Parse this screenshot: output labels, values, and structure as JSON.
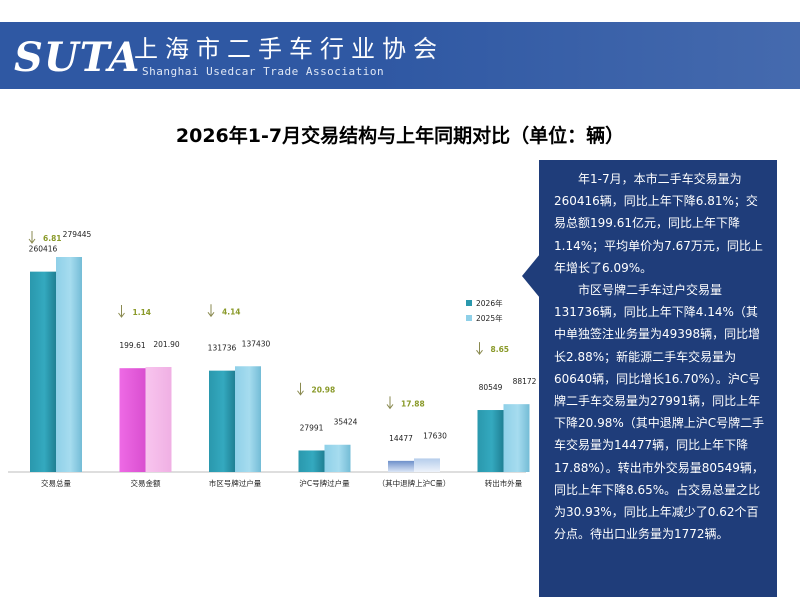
{
  "header": {
    "logo_text": "SUTA",
    "org_name_cn": "上海市二手车行业协会",
    "org_name_en": "Shanghai Usedcar Trade Association"
  },
  "title": "2026年1-7月交易结构与上年同期对比（单位：辆）",
  "chart_data": {
    "type": "bar",
    "categories": [
      "交易总量",
      "交易金额",
      "市区号牌过户量",
      "沪C号牌过户量",
      "（其中退牌上沪C量）",
      "转出市外量"
    ],
    "series": [
      {
        "name": "2026年",
        "values": [
          260416,
          199.61,
          131736,
          27991,
          14477,
          80549
        ],
        "labels": [
          "260416",
          "199.61",
          "131736",
          "27991",
          "14477",
          "80549"
        ]
      },
      {
        "name": "2025年",
        "values": [
          279445,
          201.9,
          137430,
          35424,
          17630,
          88172
        ],
        "labels": [
          "279445",
          "201.90",
          "137430",
          "35424",
          "17630",
          "88172"
        ]
      }
    ],
    "change_labels": [
      "6.81",
      "1.14",
      "4.14",
      "20.98",
      "17.88",
      "8.65"
    ],
    "change_direction": "down",
    "colors": {
      "2026": "#2a98ad",
      "2025": "#8fd0e8",
      "amount_2026": "#ee6ae5",
      "amount_2025": "#f8c5ee",
      "change_label": "#8a9a2a",
      "arrow": "#8a8a50"
    },
    "legend_position": "right",
    "grid": false,
    "note": "交易金额 in 亿元, drawn on its own scale"
  },
  "note_paragraphs": [
    "年1-7月，本市二手车交易量为260416辆，同比上年下降6.81%；交易总额199.61亿元，同比上年下降1.14%；平均单价为7.67万元，同比上年增长了6.09%。",
    "市区号牌二手车过户交易量131736辆，同比上年下降4.14%（其中单独签注业务量为49398辆，同比增长2.88%；新能源二手车交易量为60640辆，同比增长16.70%）。沪C号牌二手车交易量为27991辆，同比上年下降20.98%（其中退牌上沪C号牌二手车交易量为14477辆，同比上年下降17.88%）。转出市外交易量80549辆，同比上年下降8.65%。占交易总量之比为30.93%，同比上年减少了0.62个百分点。待出口业务量为1772辆。"
  ]
}
